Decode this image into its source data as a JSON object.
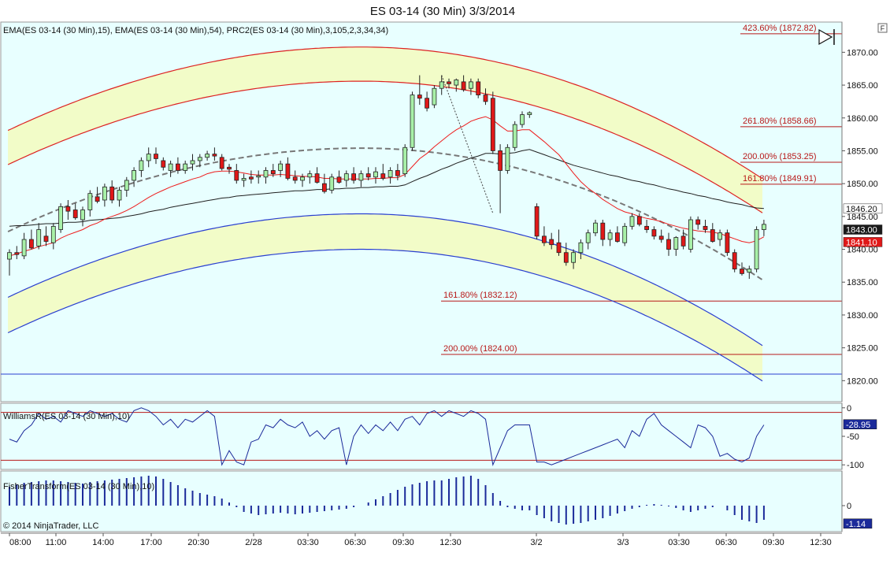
{
  "title": "ES 03-14 (30 Min)  3/3/2014",
  "copyright": "© 2014 NinjaTrader, LLC",
  "corner_button": "F",
  "colors": {
    "background": "#e8ffff",
    "band_fill": "#f2fcc8",
    "ema15": "#ee1c1c",
    "ema54": "#202020",
    "prc_upper": "#dd2222",
    "prc_lower": "#2a3fd0",
    "prc_mid": "#777777",
    "candle_up": "#a8f0a8",
    "candle_down": "#e01818",
    "fib_line": "#b81818",
    "indicator": "#1b2a9a"
  },
  "chart_data": [
    {
      "type": "candlestick",
      "title": "ES 03-14 (30 Min)  3/3/2014",
      "legend": "EMA(ES 03-14 (30 Min),15), EMA(ES 03-14 (30 Min),54), PRC2(ES 03-14 (30 Min),3,105,2,3,34,34)",
      "y_ticks": [
        "1870.00",
        "1865.00",
        "1860.00",
        "1855.00",
        "1850.00",
        "1845.00",
        "1840.00",
        "1835.00",
        "1830.00",
        "1825.00",
        "1820.00"
      ],
      "ylim": [
        1816.8,
        1874.6
      ],
      "x_ticks": [
        "08:00",
        "11:00",
        "14:00",
        "17:00",
        "20:30",
        "2/28",
        "03:30",
        "06:30",
        "09:30",
        "12:30",
        "3/2",
        "3/3",
        "03:30",
        "06:30",
        "09:30",
        "12:30"
      ],
      "candles": [
        [
          1838.5,
          1840,
          1836,
          1839.5
        ],
        [
          1839.5,
          1840.5,
          1838.5,
          1839.2
        ],
        [
          1839,
          1842.5,
          1838.5,
          1841.5
        ],
        [
          1841.5,
          1843,
          1840,
          1840.2
        ],
        [
          1840.5,
          1844,
          1840,
          1843
        ],
        [
          1842,
          1843.5,
          1840.5,
          1841.2
        ],
        [
          1841,
          1844,
          1840,
          1843.5
        ],
        [
          1843,
          1847,
          1842.5,
          1846.5
        ],
        [
          1846.5,
          1847.5,
          1844.5,
          1845.8
        ],
        [
          1846,
          1847,
          1844.5,
          1844.8
        ],
        [
          1844.5,
          1846.5,
          1843.5,
          1846
        ],
        [
          1846,
          1849,
          1845,
          1848.5
        ],
        [
          1848,
          1849.5,
          1847,
          1847.3
        ],
        [
          1847.5,
          1850,
          1846.5,
          1849.5
        ],
        [
          1849.5,
          1850.5,
          1847,
          1847.5
        ],
        [
          1847.5,
          1849.5,
          1846.5,
          1849
        ],
        [
          1849,
          1851,
          1848,
          1850.5
        ],
        [
          1850.5,
          1852.5,
          1849.5,
          1852
        ],
        [
          1852,
          1854,
          1851,
          1853.5
        ],
        [
          1853.5,
          1855.5,
          1852.5,
          1854.5
        ],
        [
          1854.5,
          1855.5,
          1853,
          1853.8
        ],
        [
          1853.5,
          1854,
          1852,
          1852.5
        ],
        [
          1852,
          1853.5,
          1851,
          1853
        ],
        [
          1853,
          1854,
          1851.5,
          1852
        ],
        [
          1852,
          1853.5,
          1851.5,
          1853
        ],
        [
          1853,
          1854.5,
          1852,
          1853.5
        ],
        [
          1853.5,
          1854.5,
          1852.5,
          1854
        ],
        [
          1854,
          1855,
          1853.5,
          1854.5
        ],
        [
          1854.5,
          1855.5,
          1853.5,
          1854.2
        ],
        [
          1854,
          1854.5,
          1852,
          1852.3
        ],
        [
          1852.5,
          1853,
          1851.5,
          1852.2
        ],
        [
          1852,
          1853,
          1850,
          1850.5
        ],
        [
          1850.5,
          1851.5,
          1849.5,
          1850.8
        ],
        [
          1851,
          1852,
          1850,
          1850.7
        ],
        [
          1851,
          1852,
          1850,
          1851.2
        ],
        [
          1851,
          1852.5,
          1850,
          1852
        ],
        [
          1852,
          1853,
          1851,
          1851.5
        ],
        [
          1852,
          1853.5,
          1851,
          1853
        ],
        [
          1853,
          1854,
          1850.5,
          1850.8
        ],
        [
          1851,
          1852,
          1850,
          1850.5
        ],
        [
          1850.5,
          1851.5,
          1849.5,
          1851
        ],
        [
          1851,
          1852,
          1850,
          1851.5
        ],
        [
          1851.5,
          1852.5,
          1850,
          1850.2
        ],
        [
          1850,
          1851.5,
          1848.5,
          1848.8
        ],
        [
          1849,
          1851.5,
          1848.5,
          1851
        ],
        [
          1851,
          1852,
          1850,
          1850.2
        ],
        [
          1850.5,
          1852,
          1849.5,
          1851.5
        ],
        [
          1851.5,
          1852.5,
          1850,
          1850.5
        ],
        [
          1850.5,
          1852,
          1849.5,
          1851.5
        ],
        [
          1851.5,
          1852.5,
          1850.5,
          1851
        ],
        [
          1851,
          1852.5,
          1850,
          1851.8
        ],
        [
          1851.5,
          1853,
          1850.5,
          1850.8
        ],
        [
          1851,
          1852.5,
          1850,
          1852
        ],
        [
          1852,
          1853,
          1850.5,
          1851.2
        ],
        [
          1851.5,
          1856,
          1851,
          1855.5
        ],
        [
          1855.5,
          1864,
          1855,
          1863.5
        ],
        [
          1863.5,
          1866.5,
          1862,
          1863
        ],
        [
          1863,
          1864,
          1861,
          1861.5
        ],
        [
          1862,
          1865,
          1861.5,
          1864.5
        ],
        [
          1864.5,
          1866.5,
          1863.5,
          1865.5
        ],
        [
          1865.5,
          1866,
          1864.5,
          1865.2
        ],
        [
          1865,
          1866,
          1864,
          1865.8
        ],
        [
          1865.5,
          1866.5,
          1864,
          1864.3
        ],
        [
          1864.5,
          1866,
          1863.5,
          1865.5
        ],
        [
          1865.5,
          1866,
          1863,
          1863.5
        ],
        [
          1863.5,
          1864.5,
          1862,
          1862.5
        ],
        [
          1863,
          1864,
          1854.5,
          1855
        ],
        [
          1855,
          1856,
          1845.5,
          1852
        ],
        [
          1852,
          1856,
          1851.5,
          1855.5
        ],
        [
          1855.5,
          1859.5,
          1855,
          1859
        ],
        [
          1859,
          1861,
          1858.5,
          1860.5
        ],
        [
          1860.5,
          1861,
          1860,
          1860.8
        ],
        [
          1846.5,
          1847,
          1841.5,
          1842
        ],
        [
          1842,
          1843.5,
          1840.5,
          1841
        ],
        [
          1841.5,
          1842.5,
          1840,
          1840.7
        ],
        [
          1841,
          1843,
          1839,
          1839.5
        ],
        [
          1839.5,
          1841,
          1837.5,
          1838
        ],
        [
          1838,
          1840,
          1837,
          1839.5
        ],
        [
          1839.5,
          1841.5,
          1838.5,
          1841
        ],
        [
          1841,
          1843,
          1840,
          1842.5
        ],
        [
          1842.5,
          1844.5,
          1842,
          1844
        ],
        [
          1844,
          1844.5,
          1840.5,
          1841.5
        ],
        [
          1841.5,
          1843,
          1840.5,
          1842.5
        ],
        [
          1842.5,
          1843.5,
          1841,
          1841.2
        ],
        [
          1841,
          1844,
          1840.5,
          1843.5
        ],
        [
          1843.5,
          1845.5,
          1843,
          1845
        ],
        [
          1845,
          1845.5,
          1843.5,
          1843.8
        ],
        [
          1843.5,
          1844.5,
          1842.5,
          1843
        ],
        [
          1843,
          1843.5,
          1841.5,
          1842
        ],
        [
          1842,
          1843,
          1841,
          1841.5
        ],
        [
          1841.5,
          1842.5,
          1839,
          1840
        ],
        [
          1840,
          1842,
          1839,
          1841.8
        ],
        [
          1842,
          1843,
          1840,
          1840.5
        ],
        [
          1840,
          1845,
          1839.5,
          1844.5
        ],
        [
          1844.5,
          1845,
          1843,
          1843.8
        ],
        [
          1843.5,
          1844.5,
          1842.5,
          1843
        ],
        [
          1843,
          1844,
          1841,
          1841.2
        ],
        [
          1841.5,
          1843,
          1840.5,
          1842.5
        ],
        [
          1842.5,
          1843,
          1839,
          1839.5
        ],
        [
          1839.5,
          1840,
          1836.5,
          1837
        ],
        [
          1837,
          1838,
          1836,
          1836.3
        ],
        [
          1836.5,
          1837.5,
          1835.5,
          1837
        ],
        [
          1837,
          1843.5,
          1836.5,
          1843
        ],
        [
          1843,
          1844.5,
          1842,
          1843.8
        ]
      ],
      "fib_levels": [
        {
          "label": "423.60% (1872.82)",
          "value": 1872.82
        },
        {
          "label": "261.80% (1858.66)",
          "value": 1858.66
        },
        {
          "label": "200.00% (1853.25)",
          "value": 1853.25
        },
        {
          "label": "161.80% (1849.91)",
          "value": 1849.91
        },
        {
          "label": "161.80% (1832.12)",
          "value": 1832.12
        },
        {
          "label": "200.00% (1824.00)",
          "value": 1824.0
        }
      ],
      "horizontal_line": 1821.0,
      "fib_swing": {
        "from": [
          59,
          1866.5
        ],
        "to": [
          66,
          1845.5
        ]
      },
      "ema15": [
        1839,
        1839.3,
        1839.7,
        1840,
        1840.4,
        1840.7,
        1841,
        1841.7,
        1842.2,
        1842.6,
        1843,
        1843.6,
        1844,
        1844.6,
        1845,
        1845.4,
        1845.9,
        1846.5,
        1847.2,
        1847.9,
        1848.5,
        1849,
        1849.5,
        1849.9,
        1850.3,
        1850.7,
        1851,
        1851.5,
        1851.8,
        1851.9,
        1851.9,
        1851.8,
        1851.6,
        1851.4,
        1851.3,
        1851.3,
        1851.3,
        1851.4,
        1851.3,
        1851.2,
        1851.1,
        1851.1,
        1851,
        1850.8,
        1850.8,
        1850.7,
        1850.7,
        1850.7,
        1850.7,
        1850.7,
        1850.8,
        1850.8,
        1850.9,
        1850.9,
        1851.4,
        1852.6,
        1853.8,
        1854.6,
        1855.6,
        1856.5,
        1857.4,
        1858.2,
        1858.8,
        1859.5,
        1859.9,
        1860.2,
        1859.7,
        1858.8,
        1858,
        1858,
        1858.2,
        1858.2,
        1857.3,
        1856.4,
        1855.4,
        1854.4,
        1853,
        1851.6,
        1850.3,
        1849.3,
        1848.5,
        1847.6,
        1846.9,
        1846.2,
        1845.7,
        1845.4,
        1845,
        1844.7,
        1844.5,
        1844.2,
        1843.8,
        1843.5,
        1843.2,
        1843,
        1842.8,
        1842.7,
        1842.6,
        1842.4,
        1842,
        1841.6,
        1841.2,
        1841,
        1841.3,
        1841.9
      ],
      "ema54": [
        1843.5,
        1843.6,
        1843.6,
        1843.7,
        1843.8,
        1843.9,
        1843.9,
        1844,
        1844.1,
        1844.1,
        1844.2,
        1844.4,
        1844.5,
        1844.6,
        1844.7,
        1844.8,
        1845,
        1845.2,
        1845.4,
        1845.7,
        1845.9,
        1846.1,
        1846.4,
        1846.6,
        1846.8,
        1847,
        1847.2,
        1847.4,
        1847.6,
        1847.8,
        1847.9,
        1848.1,
        1848.2,
        1848.3,
        1848.4,
        1848.5,
        1848.6,
        1848.7,
        1848.8,
        1848.9,
        1848.9,
        1849,
        1849.1,
        1849.1,
        1849.2,
        1849.2,
        1849.3,
        1849.3,
        1849.4,
        1849.4,
        1849.5,
        1849.5,
        1849.6,
        1849.6,
        1849.8,
        1850.3,
        1850.8,
        1851.2,
        1851.7,
        1852.2,
        1852.6,
        1853.1,
        1853.5,
        1853.9,
        1854.2,
        1854.6,
        1854.6,
        1854.5,
        1854.6,
        1854.7,
        1855,
        1855.2,
        1854.8,
        1854.4,
        1854,
        1853.6,
        1853.2,
        1852.8,
        1852.5,
        1852.2,
        1851.9,
        1851.6,
        1851.3,
        1851.1,
        1850.8,
        1850.5,
        1850.3,
        1850,
        1849.8,
        1849.5,
        1849.2,
        1849,
        1848.7,
        1848.5,
        1848.2,
        1848,
        1847.7,
        1847.5,
        1847.2,
        1847,
        1846.8,
        1846.5,
        1846.3,
        1846.2
      ],
      "prc_mid_endpoints": [
        1842.8,
        1835.2
      ],
      "prc_vertex": [
        48,
        1855.4
      ],
      "prc_upper_inner_offset": 10.2,
      "prc_upper_outer_offset": 15.4,
      "prc_lower_inner_offset": -10.0,
      "prc_lower_outer_offset": -15.4
    },
    {
      "type": "line",
      "title": "WilliamsR(ES 03-14 (30 Min),10)",
      "y_ticks": [
        "0",
        "-50",
        "-100"
      ],
      "ylim": [
        -108,
        8
      ],
      "ref_lines": [
        -8,
        -92
      ],
      "current_value": "-28.95",
      "values": [
        -55,
        -60,
        -40,
        -30,
        -10,
        -20,
        -15,
        -25,
        -5,
        -10,
        -15,
        -5,
        -10,
        -15,
        -10,
        -20,
        -25,
        -5,
        0,
        -5,
        -15,
        -30,
        -20,
        -35,
        -20,
        -25,
        -15,
        -5,
        -15,
        -100,
        -75,
        -95,
        -100,
        -60,
        -55,
        -30,
        -35,
        -20,
        -30,
        -35,
        -25,
        -50,
        -40,
        -55,
        -40,
        -35,
        -100,
        -50,
        -30,
        -45,
        -30,
        -40,
        -25,
        -40,
        -20,
        -15,
        -30,
        -10,
        -5,
        -15,
        -5,
        -10,
        -15,
        -5,
        -10,
        -20,
        -100,
        -70,
        -40,
        -30,
        -30,
        -30,
        -95,
        -95,
        -100,
        -95,
        -90,
        -85,
        -80,
        -75,
        -70,
        -65,
        -60,
        -55,
        -70,
        -40,
        -50,
        -20,
        -10,
        -30,
        -40,
        -50,
        -60,
        -70,
        -30,
        -35,
        -50,
        -85,
        -80,
        -90,
        -95,
        -88,
        -50,
        -30
      ]
    },
    {
      "type": "bar",
      "title": "FisherTransform(ES 03-14 (30 Min),10)",
      "y_ticks": [
        "0"
      ],
      "ylim": [
        -1.65,
        2.2
      ],
      "current_value": "-1.14",
      "values": [
        1.2,
        1.35,
        1.45,
        1.5,
        1.55,
        1.6,
        1.6,
        1.55,
        1.5,
        1.45,
        1.4,
        1.5,
        1.55,
        1.6,
        1.65,
        1.7,
        1.75,
        1.8,
        1.85,
        1.9,
        1.85,
        1.7,
        1.5,
        1.3,
        1.1,
        0.95,
        0.8,
        0.7,
        0.6,
        0.45,
        0.2,
        -0.1,
        -0.4,
        -0.5,
        -0.6,
        -0.55,
        -0.5,
        -0.45,
        -0.5,
        -0.55,
        -0.5,
        -0.45,
        -0.4,
        -0.35,
        -0.3,
        -0.25,
        -0.2,
        -0.1,
        0,
        0.2,
        0.4,
        0.6,
        0.8,
        1.0,
        1.2,
        1.35,
        1.45,
        1.55,
        1.6,
        1.6,
        1.7,
        1.8,
        1.85,
        1.9,
        1.7,
        1.3,
        0.8,
        0.3,
        -0.1,
        -0.2,
        -0.3,
        -0.3,
        -0.6,
        -0.8,
        -1.0,
        -1.1,
        -1.2,
        -1.15,
        -1.1,
        -1.0,
        -0.9,
        -0.8,
        -0.65,
        -0.5,
        -0.35,
        -0.2,
        -0.1,
        0.05,
        0.1,
        0.05,
        -0.05,
        -0.15,
        -0.3,
        -0.4,
        -0.3,
        -0.2,
        -0.1,
        0,
        -0.3,
        -0.6,
        -0.9,
        -1.0,
        -1.1,
        -0.9
      ]
    }
  ]
}
